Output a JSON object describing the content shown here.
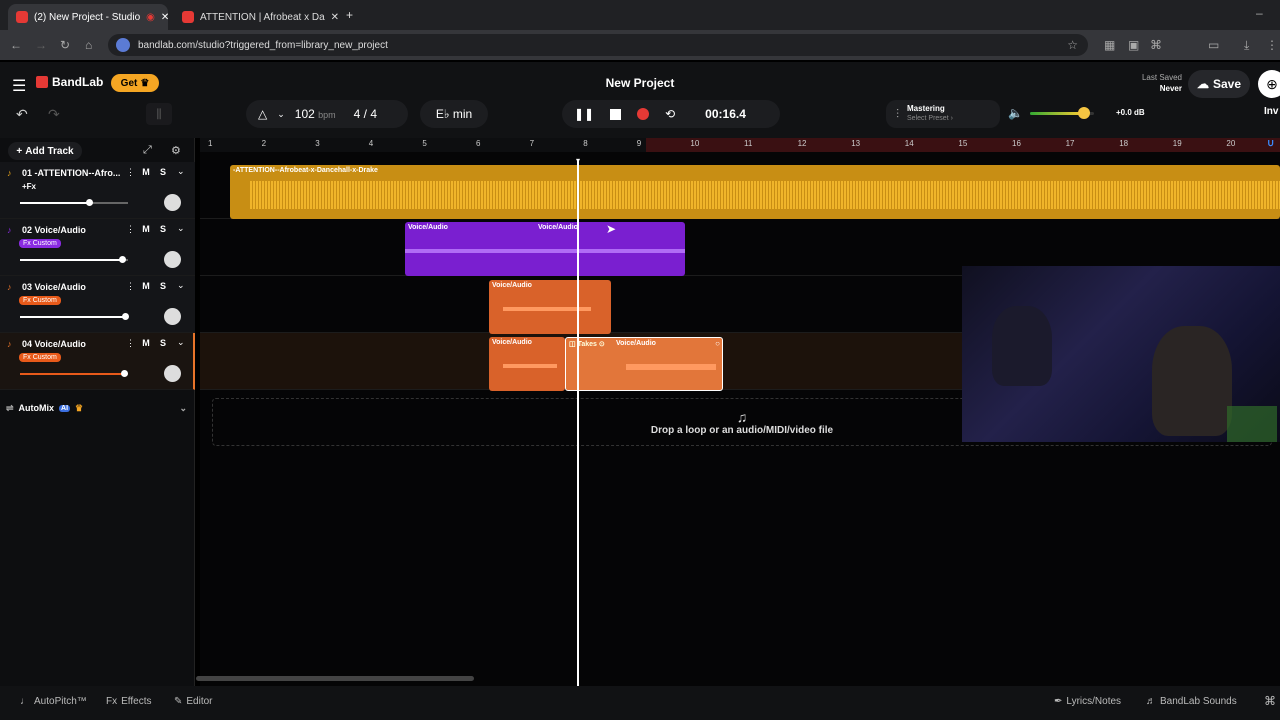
{
  "browser": {
    "tabs": [
      {
        "title": "(2) New Project - Studio",
        "active": true
      },
      {
        "title": "ATTENTION | Afrobeat x Da",
        "active": false
      }
    ],
    "url": "bandlab.com/studio?triggered_from=library_new_project"
  },
  "header": {
    "brand": "BandLab",
    "get_label": "Get",
    "project_title": "New Project",
    "last_saved_label": "Last Saved",
    "last_saved_value": "Never",
    "save_label": "Save",
    "invite_label": "Inv"
  },
  "transport": {
    "bpm": "102",
    "bpm_unit": "bpm",
    "time_sig": "4 / 4",
    "key": "E♭ min",
    "time": "00:16.4",
    "mastering_label": "Mastering",
    "mastering_preset": "Select Preset ›",
    "master_gain": "+0.0 dB",
    "master_volume_level": 0.85
  },
  "tracklist": {
    "add_track": "Add Track",
    "tracks": [
      {
        "name": "01 -ATTENTION--Afro...",
        "tag": "+Fx",
        "tag_color": "",
        "volume": 0.65
      },
      {
        "name": "02 Voice/Audio",
        "tag": "Fx Custom",
        "tag_color": "#8a2be2",
        "volume": 0.95
      },
      {
        "name": "03 Voice/Audio",
        "tag": "Fx Custom",
        "tag_color": "#e85a1a",
        "volume": 0.98
      },
      {
        "name": "04 Voice/Audio",
        "tag": "Fx Custom",
        "tag_color": "#e85a1a",
        "volume": 0.97
      }
    ],
    "mute_label": "M",
    "solo_label": "S",
    "automix_label": "AutoMix",
    "ai_badge": "AI"
  },
  "ruler": {
    "bars": [
      "1",
      "2",
      "3",
      "4",
      "5",
      "6",
      "7",
      "8",
      "9",
      "10",
      "11",
      "12",
      "13",
      "14",
      "15",
      "16",
      "17",
      "18",
      "19",
      "20"
    ]
  },
  "regions": {
    "track1": "-ATTENTION--Afrobeat-x-Dancehall-x-Drake",
    "track2a": "Voice/Audio",
    "track2b": "Voice/Audio",
    "track3": "Voice/Audio",
    "track4a": "Voice/Audio",
    "track4_takes": "Takes",
    "track4b": "Voice/Audio"
  },
  "drop_zone": "Drop a loop or an audio/MIDI/video file",
  "bottom": {
    "autopitch": "AutoPitch™",
    "effects": "Effects",
    "editor": "Editor",
    "lyrics": "Lyrics/Notes",
    "sounds": "BandLab Sounds"
  },
  "colors": {
    "accent": "#f5a623",
    "track1": "#e6a31a",
    "track2": "#8a2be2",
    "track3": "#e8742a",
    "record": "#e53935"
  }
}
